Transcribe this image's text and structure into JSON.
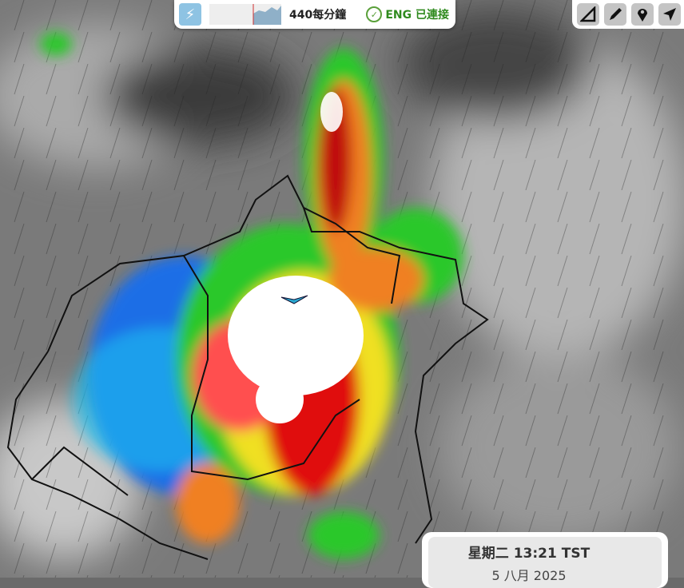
{
  "status_bar": {
    "icon": "lightning-icon",
    "rate": "440每分鐘",
    "connection": "ENG 已連接",
    "connection_color": "#2f8a1e"
  },
  "tools": [
    {
      "name": "ruler-icon"
    },
    {
      "name": "pencil-icon"
    },
    {
      "name": "map-pin-icon"
    },
    {
      "name": "locate-arrow-icon"
    }
  ],
  "timestamp": {
    "time": "星期二 13:21 TST",
    "date": "5 八月 2025"
  },
  "radar_colors": [
    "#1e6ee6",
    "#18c0f0",
    "#2cc82c",
    "#f0e020",
    "#f08020",
    "#e01010",
    "#a00000",
    "#ffffff"
  ]
}
